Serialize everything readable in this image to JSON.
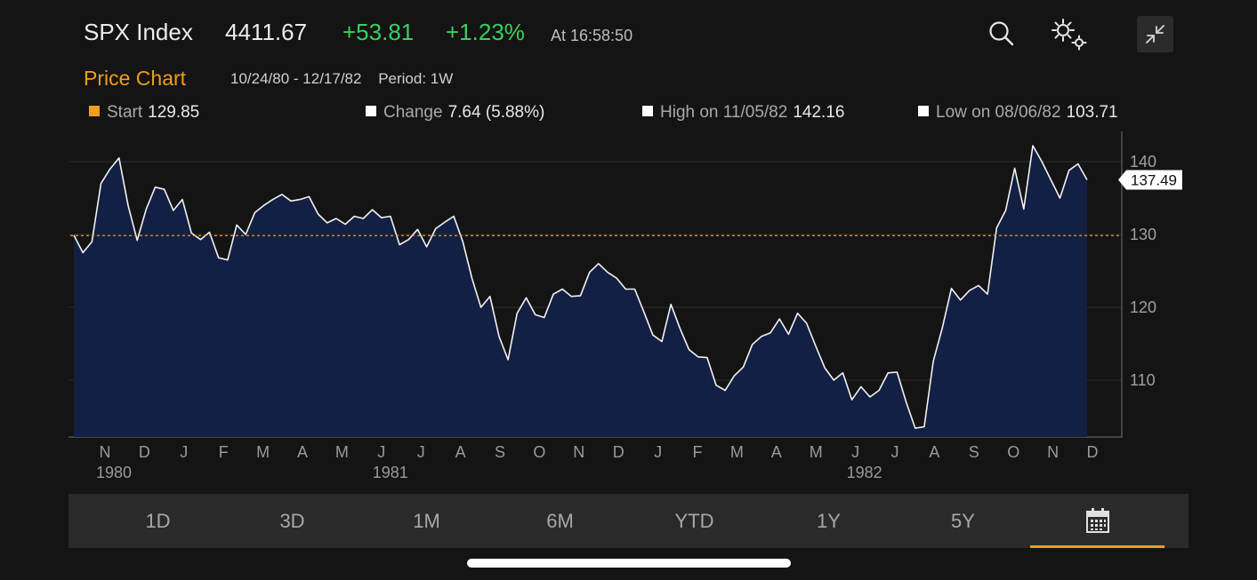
{
  "header": {
    "ticker": "SPX Index",
    "price": "4411.67",
    "change_abs": "+53.81",
    "change_pct": "+1.23%",
    "time": "At 16:58:50",
    "change_color": "#3ad05c"
  },
  "icons": {
    "search": "search-icon",
    "settings": "gear-icon",
    "collapse": "collapse-icon"
  },
  "chart_header": {
    "title": "Price Chart",
    "range": "10/24/80 - 12/17/82",
    "period": "Period: 1W"
  },
  "stats": [
    {
      "label": "Start",
      "value": "129.85",
      "color": "#f39c1f"
    },
    {
      "label": "Change",
      "value": "7.64 (5.88%)",
      "color": "#ffffff"
    },
    {
      "label": "High on 11/05/82",
      "value": "142.16",
      "color": "#ffffff"
    },
    {
      "label": "Low on 08/06/82",
      "value": "103.71",
      "color": "#ffffff"
    }
  ],
  "chart_data": {
    "type": "area",
    "y_ticks": [
      "140",
      "130",
      "120",
      "110"
    ],
    "ylim": [
      101.5,
      145.5
    ],
    "reference_line": 129.85,
    "last_value_label": "137.49",
    "x_month_labels": [
      "N",
      "D",
      "J",
      "F",
      "M",
      "A",
      "M",
      "J",
      "J",
      "A",
      "S",
      "O",
      "N",
      "D",
      "J",
      "F",
      "M",
      "A",
      "M",
      "J",
      "J",
      "A",
      "S",
      "O",
      "N",
      "D"
    ],
    "x_year_labels": [
      "1980",
      "1981",
      "1982"
    ],
    "values": [
      129.9,
      127.5,
      129.0,
      137.0,
      139.0,
      140.5,
      134.0,
      129.2,
      133.5,
      136.5,
      136.2,
      133.3,
      134.8,
      130.2,
      129.3,
      130.3,
      126.8,
      126.5,
      131.3,
      130.0,
      133.0,
      134.0,
      134.8,
      135.5,
      134.6,
      134.8,
      135.2,
      132.8,
      131.6,
      132.2,
      131.4,
      132.5,
      132.2,
      133.4,
      132.3,
      132.5,
      128.6,
      129.3,
      130.7,
      128.3,
      130.8,
      131.7,
      132.5,
      129.0,
      124.0,
      120.0,
      121.5,
      116.0,
      112.8,
      119.2,
      121.3,
      119.0,
      118.6,
      121.8,
      122.5,
      121.5,
      121.6,
      124.8,
      126.0,
      124.8,
      124.0,
      122.5,
      122.5,
      119.4,
      116.2,
      115.3,
      120.4,
      117.1,
      114.2,
      113.2,
      113.1,
      109.3,
      108.6,
      110.6,
      111.8,
      114.9,
      116.0,
      116.5,
      118.4,
      116.3,
      119.2,
      117.8,
      114.7,
      111.7,
      110.0,
      111.0,
      107.3,
      109.1,
      107.7,
      108.6,
      111.0,
      111.1,
      107.0,
      103.4,
      103.6,
      112.6,
      117.2,
      122.6,
      121.0,
      122.3,
      123.0,
      121.8,
      130.9,
      133.3,
      139.1,
      133.5,
      142.2,
      140.0,
      137.5,
      135.0,
      138.8,
      139.7,
      137.5
    ]
  },
  "tabs": [
    {
      "label": "1D"
    },
    {
      "label": "3D"
    },
    {
      "label": "1M"
    },
    {
      "label": "6M"
    },
    {
      "label": "YTD"
    },
    {
      "label": "1Y"
    },
    {
      "label": "5Y"
    }
  ],
  "active_tab_icon": "calendar-icon",
  "accent_color": "#f39c1f",
  "area_fill": "#132044"
}
